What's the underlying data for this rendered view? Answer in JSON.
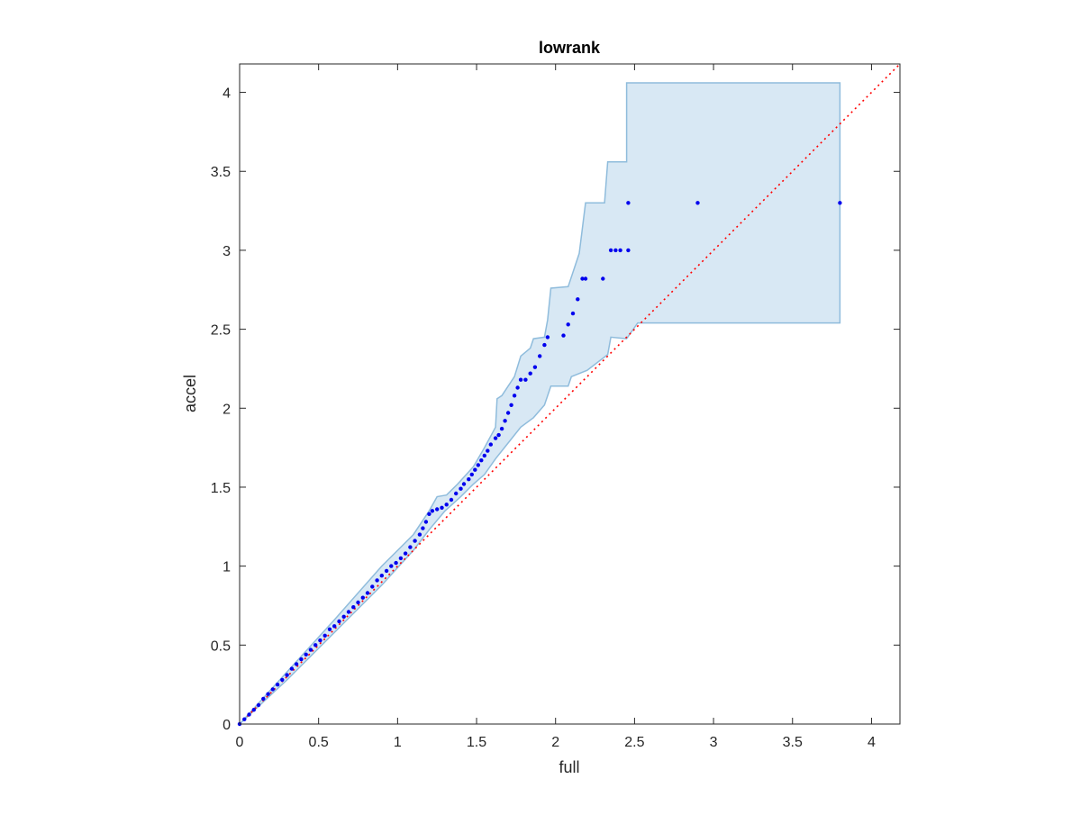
{
  "chart_data": {
    "type": "scatter",
    "title": "lowrank",
    "xlabel": "full",
    "ylabel": "accel",
    "xlim": [
      0,
      4.18
    ],
    "ylim": [
      0,
      4.18
    ],
    "xticks": [
      0,
      0.5,
      1,
      1.5,
      2,
      2.5,
      3,
      3.5,
      4
    ],
    "xtick_labels": [
      "0",
      "0.5",
      "1",
      "1.5",
      "2",
      "2.5",
      "3",
      "3.5",
      "4"
    ],
    "yticks": [
      0,
      0.5,
      1,
      1.5,
      2,
      2.5,
      3,
      3.5,
      4
    ],
    "ytick_labels": [
      "0",
      "0.5",
      "1",
      "1.5",
      "2",
      "2.5",
      "3",
      "3.5",
      "4"
    ],
    "grid": false,
    "box": true,
    "colors": {
      "points": "#0000ee",
      "reference_line": "#ff0000",
      "band_fill": "#d8e8f4",
      "band_edge": "#8fbcdc",
      "axes": "#262626"
    },
    "reference_line": {
      "style": "dotted",
      "x": [
        0,
        4.18
      ],
      "y": [
        0,
        4.18
      ]
    },
    "confidence_band": {
      "upper": [
        [
          0,
          0
        ],
        [
          0.3,
          0.33
        ],
        [
          0.6,
          0.66
        ],
        [
          0.9,
          1.0
        ],
        [
          1.0,
          1.1
        ],
        [
          1.1,
          1.2
        ],
        [
          1.2,
          1.35
        ],
        [
          1.25,
          1.44
        ],
        [
          1.31,
          1.45
        ],
        [
          1.38,
          1.52
        ],
        [
          1.48,
          1.63
        ],
        [
          1.55,
          1.75
        ],
        [
          1.62,
          1.88
        ],
        [
          1.63,
          2.06
        ],
        [
          1.66,
          2.08
        ],
        [
          1.74,
          2.2
        ],
        [
          1.78,
          2.33
        ],
        [
          1.84,
          2.38
        ],
        [
          1.86,
          2.44
        ],
        [
          1.93,
          2.45
        ],
        [
          1.95,
          2.56
        ],
        [
          1.97,
          2.76
        ],
        [
          2.08,
          2.77
        ],
        [
          2.15,
          2.98
        ],
        [
          2.19,
          3.3
        ],
        [
          2.31,
          3.3
        ],
        [
          2.33,
          3.56
        ],
        [
          2.45,
          3.56
        ],
        [
          2.45,
          4.06
        ],
        [
          3.8,
          4.06
        ]
      ],
      "lower": [
        [
          3.8,
          2.54
        ],
        [
          2.52,
          2.54
        ],
        [
          2.45,
          2.44
        ],
        [
          2.35,
          2.45
        ],
        [
          2.33,
          2.34
        ],
        [
          2.2,
          2.24
        ],
        [
          2.1,
          2.2
        ],
        [
          2.08,
          2.14
        ],
        [
          1.97,
          2.14
        ],
        [
          1.93,
          2.02
        ],
        [
          1.86,
          1.94
        ],
        [
          1.78,
          1.88
        ],
        [
          1.7,
          1.78
        ],
        [
          1.62,
          1.68
        ],
        [
          1.55,
          1.58
        ],
        [
          1.48,
          1.52
        ],
        [
          1.4,
          1.44
        ],
        [
          1.3,
          1.35
        ],
        [
          1.2,
          1.23
        ],
        [
          1.1,
          1.1
        ],
        [
          0.9,
          0.88
        ],
        [
          0.6,
          0.58
        ],
        [
          0.3,
          0.28
        ],
        [
          0,
          0
        ]
      ]
    },
    "series": [
      {
        "marker": "dot",
        "points": [
          [
            0.0,
            0.0
          ],
          [
            0.03,
            0.03
          ],
          [
            0.06,
            0.06
          ],
          [
            0.09,
            0.09
          ],
          [
            0.12,
            0.12
          ],
          [
            0.15,
            0.16
          ],
          [
            0.18,
            0.19
          ],
          [
            0.21,
            0.22
          ],
          [
            0.24,
            0.25
          ],
          [
            0.27,
            0.28
          ],
          [
            0.3,
            0.31
          ],
          [
            0.33,
            0.35
          ],
          [
            0.36,
            0.38
          ],
          [
            0.39,
            0.41
          ],
          [
            0.42,
            0.44
          ],
          [
            0.45,
            0.47
          ],
          [
            0.48,
            0.5
          ],
          [
            0.51,
            0.53
          ],
          [
            0.54,
            0.56
          ],
          [
            0.57,
            0.6
          ],
          [
            0.6,
            0.62
          ],
          [
            0.63,
            0.65
          ],
          [
            0.66,
            0.68
          ],
          [
            0.69,
            0.71
          ],
          [
            0.72,
            0.74
          ],
          [
            0.75,
            0.77
          ],
          [
            0.78,
            0.8
          ],
          [
            0.81,
            0.83
          ],
          [
            0.84,
            0.87
          ],
          [
            0.87,
            0.91
          ],
          [
            0.9,
            0.94
          ],
          [
            0.93,
            0.97
          ],
          [
            0.96,
            1.0
          ],
          [
            0.99,
            1.02
          ],
          [
            1.02,
            1.05
          ],
          [
            1.05,
            1.08
          ],
          [
            1.08,
            1.12
          ],
          [
            1.11,
            1.16
          ],
          [
            1.14,
            1.2
          ],
          [
            1.16,
            1.24
          ],
          [
            1.18,
            1.28
          ],
          [
            1.2,
            1.33
          ],
          [
            1.22,
            1.35
          ],
          [
            1.25,
            1.36
          ],
          [
            1.28,
            1.37
          ],
          [
            1.31,
            1.39
          ],
          [
            1.34,
            1.42
          ],
          [
            1.37,
            1.46
          ],
          [
            1.4,
            1.49
          ],
          [
            1.42,
            1.52
          ],
          [
            1.45,
            1.55
          ],
          [
            1.47,
            1.58
          ],
          [
            1.49,
            1.61
          ],
          [
            1.51,
            1.64
          ],
          [
            1.53,
            1.67
          ],
          [
            1.55,
            1.7
          ],
          [
            1.57,
            1.73
          ],
          [
            1.59,
            1.77
          ],
          [
            1.62,
            1.81
          ],
          [
            1.64,
            1.83
          ],
          [
            1.66,
            1.87
          ],
          [
            1.68,
            1.92
          ],
          [
            1.7,
            1.97
          ],
          [
            1.72,
            2.02
          ],
          [
            1.74,
            2.08
          ],
          [
            1.76,
            2.13
          ],
          [
            1.78,
            2.18
          ],
          [
            1.81,
            2.18
          ],
          [
            1.84,
            2.22
          ],
          [
            1.87,
            2.26
          ],
          [
            1.9,
            2.33
          ],
          [
            1.93,
            2.4
          ],
          [
            1.95,
            2.45
          ],
          [
            2.05,
            2.46
          ],
          [
            2.08,
            2.53
          ],
          [
            2.11,
            2.6
          ],
          [
            2.14,
            2.69
          ],
          [
            2.17,
            2.82
          ],
          [
            2.19,
            2.82
          ],
          [
            2.3,
            2.82
          ],
          [
            2.35,
            3.0
          ],
          [
            2.38,
            3.0
          ],
          [
            2.41,
            3.0
          ],
          [
            2.46,
            3.0
          ],
          [
            2.46,
            3.3
          ],
          [
            2.9,
            3.3
          ],
          [
            3.8,
            3.3
          ]
        ]
      }
    ]
  }
}
